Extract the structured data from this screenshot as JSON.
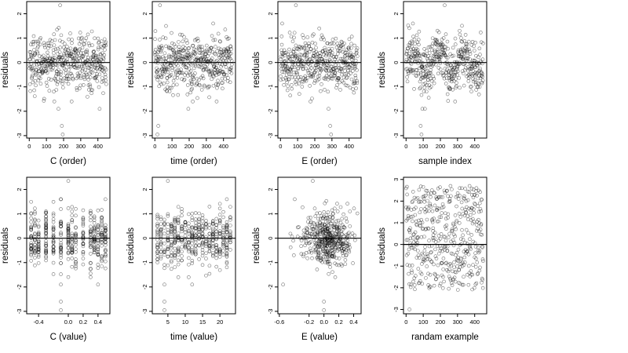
{
  "chart_data": [
    {
      "type": "scatter",
      "xlabel": "C (order)",
      "ylabel": "residuals",
      "xlim": [
        -15,
        470
      ],
      "ylim": [
        -3.1,
        2.5
      ],
      "xticks": [
        0,
        100,
        200,
        300,
        400
      ],
      "xtick_labels": [
        "0",
        "100",
        "200",
        "300",
        "400"
      ],
      "yticks": [
        -3,
        -2,
        -1,
        0,
        1,
        2
      ],
      "ytick_labels": [
        "-3",
        "-2",
        "-1",
        "0",
        "1",
        "2"
      ],
      "zero_line": true,
      "n_points": 450,
      "x_kind": "index",
      "y_dist": "normal",
      "shape": "none",
      "notable_points": [
        [
          180,
          2.35
        ],
        [
          190,
          -2.6
        ],
        [
          195,
          -2.95
        ],
        [
          170,
          -1.9
        ],
        [
          410,
          -1.9
        ]
      ]
    },
    {
      "type": "scatter",
      "xlabel": "time (order)",
      "ylabel": "residuals",
      "xlim": [
        -15,
        470
      ],
      "ylim": [
        -3.1,
        2.5
      ],
      "xticks": [
        0,
        100,
        200,
        300,
        400
      ],
      "xtick_labels": [
        "0",
        "100",
        "200",
        "300",
        "400"
      ],
      "yticks": [
        -3,
        -2,
        -1,
        0,
        1,
        2
      ],
      "ytick_labels": [
        "-3",
        "-2",
        "-1",
        "0",
        "1",
        "2"
      ],
      "zero_line": true,
      "n_points": 450,
      "x_kind": "index",
      "y_dist": "normal",
      "shape": "none",
      "notable_points": [
        [
          30,
          2.35
        ],
        [
          20,
          -2.6
        ],
        [
          15,
          -2.95
        ],
        [
          195,
          -1.9
        ],
        [
          65,
          1.5
        ]
      ]
    },
    {
      "type": "scatter",
      "xlabel": "E (order)",
      "ylabel": "residuals",
      "xlim": [
        -15,
        470
      ],
      "ylim": [
        -3.1,
        2.5
      ],
      "xticks": [
        0,
        100,
        200,
        300,
        400
      ],
      "xtick_labels": [
        "0",
        "100",
        "200",
        "300",
        "400"
      ],
      "yticks": [
        -3,
        -2,
        -1,
        0,
        1,
        2
      ],
      "ytick_labels": [
        "-3",
        "-2",
        "-1",
        "0",
        "1",
        "2"
      ],
      "zero_line": true,
      "n_points": 450,
      "x_kind": "index",
      "y_dist": "normal",
      "shape": "none",
      "notable_points": [
        [
          90,
          2.35
        ],
        [
          290,
          -2.6
        ],
        [
          295,
          -2.95
        ],
        [
          280,
          -1.9
        ],
        [
          10,
          1.6
        ]
      ]
    },
    {
      "type": "scatter",
      "xlabel": "sample index",
      "ylabel": "residuals",
      "xlim": [
        -15,
        470
      ],
      "ylim": [
        -3.1,
        2.5
      ],
      "xticks": [
        0,
        100,
        200,
        300,
        400
      ],
      "xtick_labels": [
        "0",
        "100",
        "200",
        "300",
        "400"
      ],
      "yticks": [
        -3,
        -2,
        -1,
        0,
        1,
        2
      ],
      "ytick_labels": [
        "-3",
        "-2",
        "-1",
        "0",
        "1",
        "2"
      ],
      "zero_line": true,
      "n_points": 450,
      "x_kind": "index",
      "y_dist": "normal",
      "shape": "wave",
      "notable_points": [
        [
          225,
          2.35
        ],
        [
          85,
          -2.6
        ],
        [
          90,
          -2.95
        ],
        [
          95,
          -1.9
        ],
        [
          110,
          -1.9
        ]
      ]
    },
    {
      "type": "scatter",
      "xlabel": "C (value)",
      "ylabel": "residuals",
      "xlim": [
        -0.56,
        0.56
      ],
      "ylim": [
        -3.1,
        2.5
      ],
      "xticks": [
        -0.4,
        0,
        0.2,
        0.4
      ],
      "xtick_labels": [
        "-0.4",
        "0.0",
        "0.2",
        "0.4"
      ],
      "yticks": [
        -3,
        -2,
        -1,
        0,
        1,
        2
      ],
      "ytick_labels": [
        "-3",
        "-2",
        "-1",
        "0",
        "1",
        "2"
      ],
      "zero_line": true,
      "n_points": 450,
      "x_kind": "discrete",
      "x_values": [
        -0.5,
        -0.45,
        -0.4,
        -0.3,
        -0.2,
        -0.1,
        0,
        0.05,
        0.1,
        0.2,
        0.3,
        0.35,
        0.4,
        0.45,
        0.5
      ],
      "y_dist": "normal",
      "shape": "none",
      "notable_points": [
        [
          0,
          2.35
        ],
        [
          -0.1,
          -2.6
        ],
        [
          -0.1,
          -2.95
        ],
        [
          0.4,
          -1.9
        ],
        [
          -0.1,
          -1.9
        ]
      ]
    },
    {
      "type": "scatter",
      "xlabel": "time (value)",
      "ylabel": "residuals",
      "xlim": [
        0.5,
        24.5
      ],
      "ylim": [
        -3.1,
        2.5
      ],
      "xticks": [
        5,
        10,
        15,
        20
      ],
      "xtick_labels": [
        "5",
        "10",
        "15",
        "20"
      ],
      "yticks": [
        -3,
        -2,
        -1,
        0,
        1,
        2
      ],
      "ytick_labels": [
        "-3",
        "-2",
        "-1",
        "0",
        "1",
        "2"
      ],
      "zero_line": true,
      "n_points": 450,
      "x_kind": "discrete",
      "x_values": [
        2,
        3,
        4,
        5,
        6,
        7,
        8,
        9,
        10,
        11,
        12,
        13,
        14,
        15,
        16,
        17,
        18,
        19,
        20,
        21,
        22,
        23
      ],
      "y_dist": "normal",
      "shape": "none",
      "notable_points": [
        [
          5,
          2.35
        ],
        [
          4,
          -2.6
        ],
        [
          4,
          -2.95
        ],
        [
          4,
          -1.9
        ],
        [
          12,
          -1.9
        ]
      ]
    },
    {
      "type": "scatter",
      "xlabel": "E (value)",
      "ylabel": "residuals",
      "xlim": [
        -0.62,
        0.5
      ],
      "ylim": [
        -3.1,
        2.5
      ],
      "xticks": [
        -0.6,
        -0.2,
        0,
        0.2,
        0.4
      ],
      "xtick_labels": [
        "-0.6",
        "-0.2",
        "0.0",
        "0.2",
        "0.4"
      ],
      "yticks": [
        -3,
        -2,
        -1,
        0,
        1,
        2
      ],
      "ytick_labels": [
        "-3",
        "-2",
        "-1",
        "0",
        "1",
        "2"
      ],
      "zero_line": true,
      "n_points": 450,
      "x_kind": "centered",
      "x_center": 0.05,
      "x_spread": 0.17,
      "x_min": -0.55,
      "x_max": 0.45,
      "y_dist": "normal",
      "shape": "none",
      "notable_points": [
        [
          -0.15,
          2.35
        ],
        [
          0.0,
          -2.6
        ],
        [
          0.0,
          -2.95
        ],
        [
          -0.55,
          -1.9
        ],
        [
          0.35,
          1.1
        ]
      ]
    },
    {
      "type": "scatter",
      "xlabel": "randam example",
      "ylabel": "residuals",
      "xlim": [
        -15,
        470
      ],
      "ylim": [
        -3.2,
        3.1
      ],
      "xticks": [
        0,
        100,
        200,
        300,
        400
      ],
      "xtick_labels": [
        "0",
        "100",
        "200",
        "300",
        "400"
      ],
      "yticks": [
        -3,
        -2,
        -1,
        0,
        1,
        2,
        3
      ],
      "ytick_labels": [
        "-3",
        "-2",
        "-1",
        "0",
        "1",
        "2",
        "3"
      ],
      "zero_line": true,
      "n_points": 450,
      "x_kind": "index",
      "y_dist": "uniform",
      "y_range": [
        -2.1,
        2.7
      ],
      "shape": "none",
      "notable_points": [
        [
          20,
          -3.0
        ],
        [
          410,
          2.6
        ],
        [
          370,
          2.7
        ]
      ]
    }
  ]
}
